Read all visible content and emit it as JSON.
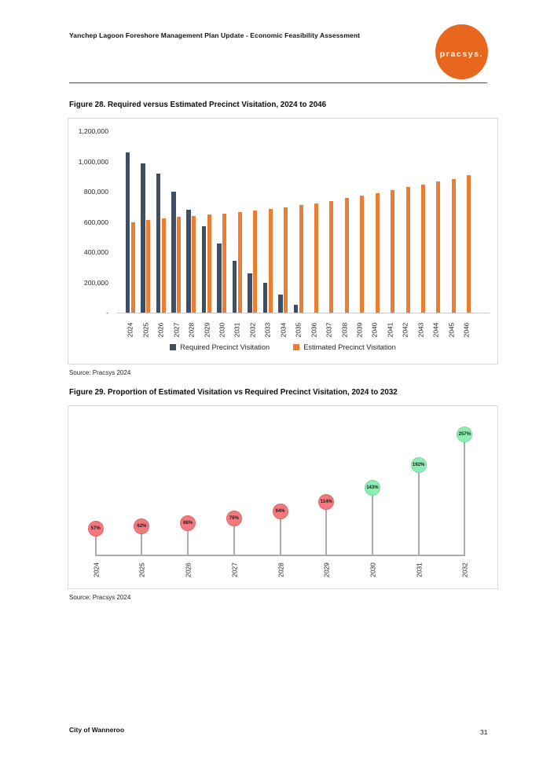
{
  "page": {
    "header_title": "Yanchep Lagoon Foreshore Management Plan Update - Economic Feasibility Assessment",
    "logo_text": "pracsys.",
    "footer_left": "City of Wanneroo",
    "page_number": "31"
  },
  "colors": {
    "required_bar": "#3F4E63",
    "estimated_bar": "#ED7D31",
    "logo_orange": "#E8671F",
    "below_target_fill": "#F4797D",
    "below_target_edge": "#E0666C",
    "above_target_fill": "#8FEDB4",
    "above_target_edge": "#79D9A0",
    "stem_gray": "#ABABAB"
  },
  "chart_data": [
    {
      "id": "figure-28",
      "type": "bar",
      "title": "Figure 28. Required versus Estimated Precinct Visitation, 2024 to 2046",
      "source": "Source: Pracsys 2024",
      "categories": [
        "2024",
        "2025",
        "2026",
        "2027",
        "2028",
        "2029",
        "2030",
        "2031",
        "2032",
        "2033",
        "2034",
        "2035",
        "2036",
        "2037",
        "2038",
        "2039",
        "2040",
        "2041",
        "2042",
        "2043",
        "2044",
        "2045",
        "2046"
      ],
      "series": [
        {
          "name": "Required Precinct Visitation",
          "color": "#3F4E63",
          "values": [
            1060000,
            985000,
            920000,
            800000,
            683000,
            570000,
            458000,
            345000,
            262000,
            195000,
            122000,
            52000,
            0,
            0,
            0,
            0,
            0,
            0,
            0,
            0,
            0,
            0,
            0
          ]
        },
        {
          "name": "Estimated Precinct Visitation",
          "color": "#ED7D31",
          "values": [
            600000,
            611000,
            624000,
            632000,
            641000,
            649000,
            656000,
            665000,
            676000,
            686000,
            698000,
            710000,
            722000,
            740000,
            759000,
            773000,
            790000,
            809000,
            829000,
            848000,
            866000,
            884000,
            907000
          ]
        }
      ],
      "xlabel": "",
      "ylabel": "",
      "ylim": [
        0,
        1200000
      ],
      "ytick_labels": [
        "-",
        "200,000",
        "400,000",
        "600,000",
        "800,000",
        "1,000,000",
        "1,200,000"
      ],
      "grid": false,
      "legend_position": "bottom"
    },
    {
      "id": "figure-29",
      "type": "scatter",
      "style": "lollipop",
      "title": "Figure 29. Proportion of Estimated Visitation vs Required Precinct Visitation, 2024 to 2032",
      "source": "Source: Pracsys 2024",
      "categories": [
        "2024",
        "2025",
        "2026",
        "2027",
        "2028",
        "2029",
        "2030",
        "2031",
        "2032"
      ],
      "values": [
        57,
        62,
        68,
        79,
        94,
        114,
        143,
        192,
        257
      ],
      "labels": [
        "57%",
        "62%",
        "68%",
        "79%",
        "94%",
        "114%",
        "143%",
        "192%",
        "257%"
      ],
      "point_colors": [
        "red",
        "red",
        "red",
        "red",
        "red",
        "red",
        "green",
        "green",
        "green"
      ],
      "xlabel": "",
      "ylabel": "",
      "ylim": [
        0,
        270
      ],
      "grid": false,
      "legend_position": "none"
    }
  ]
}
